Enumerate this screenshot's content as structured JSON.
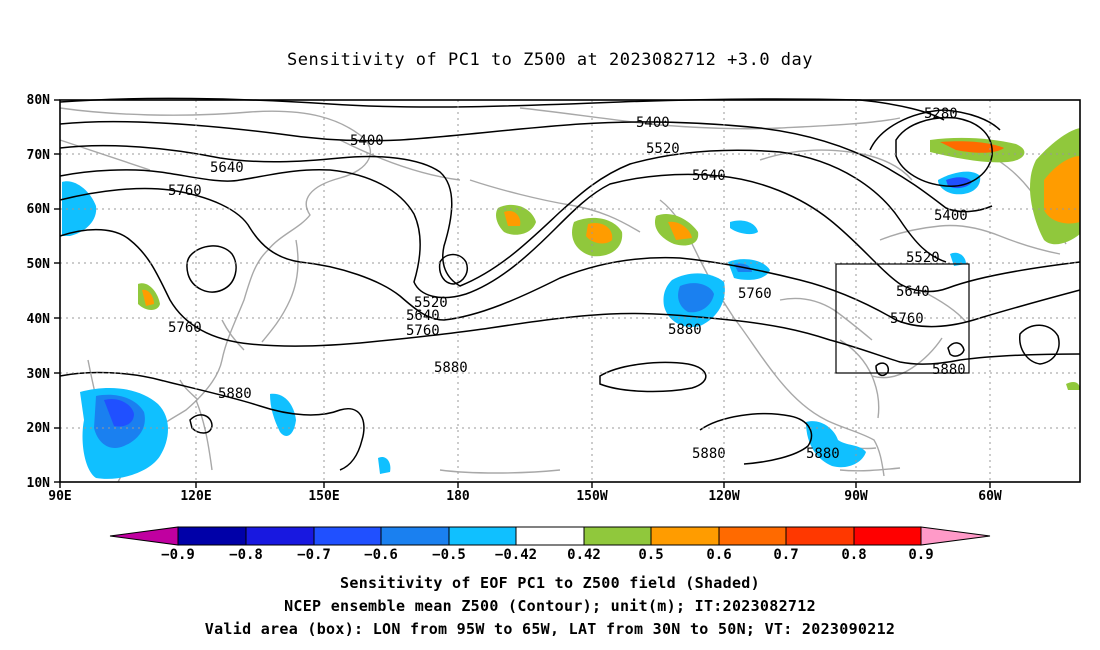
{
  "title": "Sensitivity of PC1 to Z500 at 2023082712 +3.0 day",
  "lat_labels": [
    "80N",
    "70N",
    "60N",
    "50N",
    "40N",
    "30N",
    "20N",
    "10N"
  ],
  "lon_labels": [
    "90E",
    "120E",
    "150E",
    "180",
    "150W",
    "120W",
    "90W",
    "60W"
  ],
  "contour_labels": [
    "5280",
    "5400",
    "5400",
    "5400",
    "5520",
    "5520",
    "5520",
    "5640",
    "5640",
    "5640",
    "5640",
    "5760",
    "5760",
    "5760",
    "5760",
    "5760",
    "5880",
    "5880",
    "5880",
    "5880",
    "5880",
    "5880"
  ],
  "colorbar": {
    "labels": [
      "−0.9",
      "−0.8",
      "−0.7",
      "−0.6",
      "−0.5",
      "−0.42",
      "0.42",
      "0.5",
      "0.6",
      "0.7",
      "0.8",
      "0.9"
    ],
    "colors": [
      "#c000a0",
      "#0000a8",
      "#1818e0",
      "#2050ff",
      "#1a80f0",
      "#10c0ff",
      "#ffffff",
      "#90c83c",
      "#ff9c00",
      "#ff6a00",
      "#ff3800",
      "#ff0000",
      "#ff9ac8"
    ]
  },
  "region_box": {
    "lon": [
      "95W",
      "65W"
    ],
    "lat": [
      "30N",
      "50N"
    ]
  },
  "captions": {
    "line1": "Sensitivity of EOF PC1 to Z500 field (Shaded)",
    "line2": "NCEP ensemble mean Z500 (Contour); unit(m); IT:2023082712",
    "line3": "Valid area (box): LON from 95W to 65W, LAT from 30N to 50N; VT: 2023090212"
  }
}
